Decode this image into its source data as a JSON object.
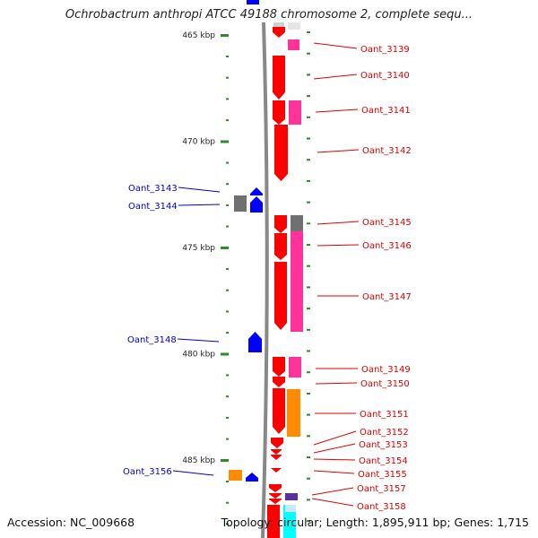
{
  "title": "Ochrobactrum anthropi ATCC 49188 chromosome 2, complete sequ...",
  "footer": {
    "accession": "Accession: NC_009668",
    "topology": "Topology: circular; Length: 1,895,911 bp; Genes: 1,715"
  },
  "ruler": [
    {
      "label": "465 kbp",
      "kb": 465
    },
    {
      "label": "470 kbp",
      "kb": 470
    },
    {
      "label": "475 kbp",
      "kb": 475
    },
    {
      "label": "480 kbp",
      "kb": 480
    },
    {
      "label": "485 kbp",
      "kb": 485
    }
  ],
  "colors": {
    "red": "#ff0000",
    "pink": "#ff3399",
    "gray": "#707070",
    "blue": "#0000ff",
    "orange": "#ff8c00",
    "purple": "#553399",
    "cyan": "#00ffff",
    "backbone": "#888888",
    "tick": "#2e8b2e",
    "label_right": "#dd0000",
    "label_left": "#0000cc"
  },
  "genes_right": [
    {
      "name": "Oant_3139"
    },
    {
      "name": "Oant_3140"
    },
    {
      "name": "Oant_3141"
    },
    {
      "name": "Oant_3142"
    },
    {
      "name": "Oant_3145"
    },
    {
      "name": "Oant_3146"
    },
    {
      "name": "Oant_3147"
    },
    {
      "name": "Oant_3149"
    },
    {
      "name": "Oant_3150"
    },
    {
      "name": "Oant_3151"
    },
    {
      "name": "Oant_3152"
    },
    {
      "name": "Oant_3153"
    },
    {
      "name": "Oant_3154"
    },
    {
      "name": "Oant_3155"
    },
    {
      "name": "Oant_3157"
    },
    {
      "name": "Oant_3158"
    }
  ],
  "genes_left": [
    {
      "name": "Oant_3143"
    },
    {
      "name": "Oant_3144"
    },
    {
      "name": "Oant_3148"
    },
    {
      "name": "Oant_3156"
    }
  ]
}
